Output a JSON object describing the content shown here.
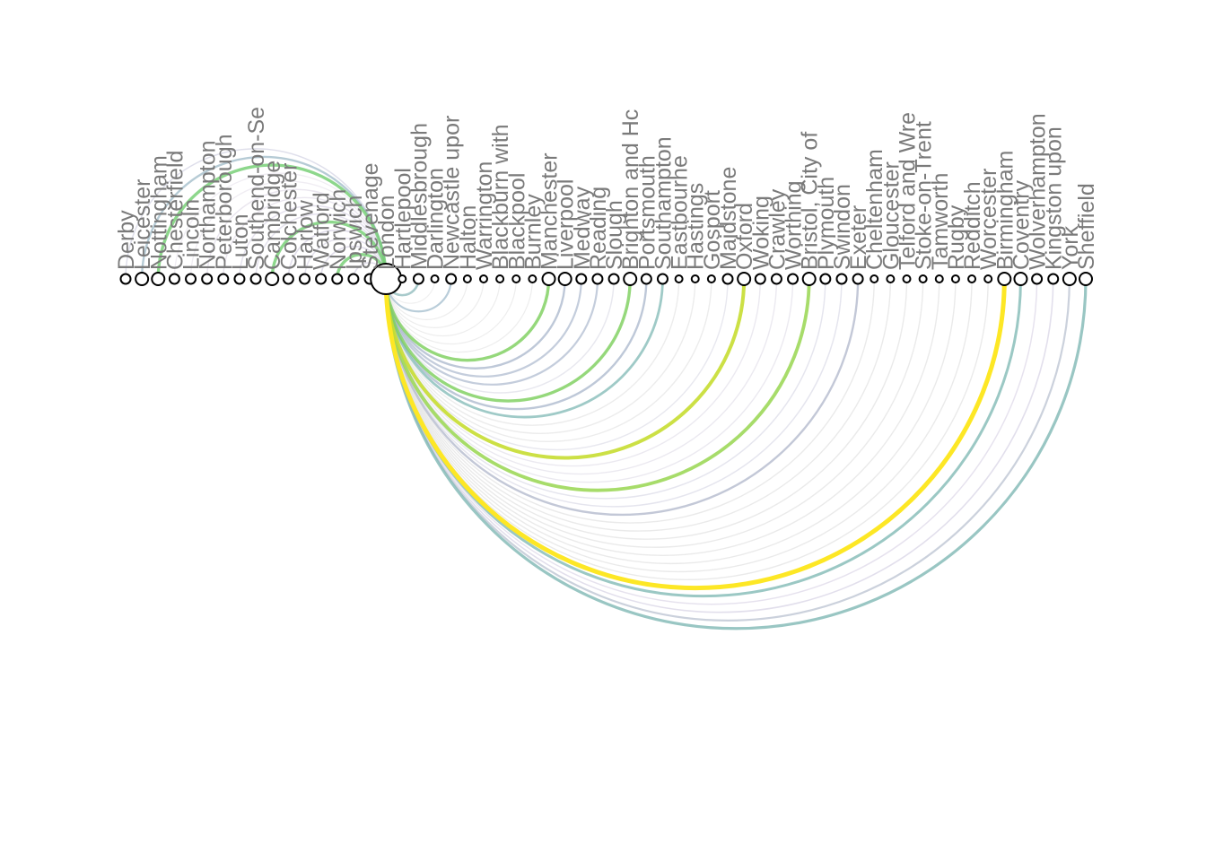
{
  "diagram": {
    "hub": "London",
    "nodes": [
      {
        "label": "Derby",
        "weight": 1
      },
      {
        "label": "Leicester",
        "weight": 2
      },
      {
        "label": "Nottingham",
        "weight": 2
      },
      {
        "label": "Chesterfield",
        "weight": 1
      },
      {
        "label": "Lincoln",
        "weight": 1
      },
      {
        "label": "Northampton",
        "weight": 1
      },
      {
        "label": "Peterborough",
        "weight": 1
      },
      {
        "label": "Luton",
        "weight": 1
      },
      {
        "label": "Southend-on-Se",
        "weight": 1
      },
      {
        "label": "Cambridge",
        "weight": 2
      },
      {
        "label": "Colchester",
        "weight": 1
      },
      {
        "label": "Harlow",
        "weight": 1
      },
      {
        "label": "Watford",
        "weight": 1
      },
      {
        "label": "Norwich",
        "weight": 1
      },
      {
        "label": "Ipswich",
        "weight": 1
      },
      {
        "label": "Stevenage",
        "weight": 1
      },
      {
        "label": "London",
        "weight": 8
      },
      {
        "label": "Hartlepool",
        "weight": 0
      },
      {
        "label": "Middlesbrough",
        "weight": 1
      },
      {
        "label": "Darlington",
        "weight": 0
      },
      {
        "label": "Newcastle upor",
        "weight": 1
      },
      {
        "label": "Halton",
        "weight": 0
      },
      {
        "label": "Warrington",
        "weight": 0
      },
      {
        "label": "Blackburn with",
        "weight": 0
      },
      {
        "label": "Blackpool",
        "weight": 0
      },
      {
        "label": "Burnley",
        "weight": 0
      },
      {
        "label": "Manchester",
        "weight": 2
      },
      {
        "label": "Liverpool",
        "weight": 2
      },
      {
        "label": "Medway",
        "weight": 1
      },
      {
        "label": "Reading",
        "weight": 1
      },
      {
        "label": "Slough",
        "weight": 1
      },
      {
        "label": "Brighton and Hc",
        "weight": 2
      },
      {
        "label": "Portsmouth",
        "weight": 1
      },
      {
        "label": "Southampton",
        "weight": 1
      },
      {
        "label": "Eastbourne",
        "weight": 0
      },
      {
        "label": "Hastings",
        "weight": 0
      },
      {
        "label": "Gosport",
        "weight": 0
      },
      {
        "label": "Maidstone",
        "weight": 1
      },
      {
        "label": "Oxford",
        "weight": 2
      },
      {
        "label": "Woking",
        "weight": 1
      },
      {
        "label": "Crawley",
        "weight": 1
      },
      {
        "label": "Worthing",
        "weight": 1
      },
      {
        "label": "Bristol, City of",
        "weight": 2
      },
      {
        "label": "Plymouth",
        "weight": 1
      },
      {
        "label": "Swindon",
        "weight": 1
      },
      {
        "label": "Exeter",
        "weight": 1
      },
      {
        "label": "Cheltenham",
        "weight": 0
      },
      {
        "label": "Gloucester",
        "weight": 0
      },
      {
        "label": "Telford and Wre",
        "weight": 0
      },
      {
        "label": "Stoke-on-Trent",
        "weight": 0
      },
      {
        "label": "Tamworth",
        "weight": 0
      },
      {
        "label": "Rugby",
        "weight": 0
      },
      {
        "label": "Redditch",
        "weight": 0
      },
      {
        "label": "Worcester",
        "weight": 0
      },
      {
        "label": "Birmingham",
        "weight": 3
      },
      {
        "label": "Coventry",
        "weight": 2
      },
      {
        "label": "Wolverhampton",
        "weight": 1
      },
      {
        "label": "Kingston upon",
        "weight": 1
      },
      {
        "label": "York",
        "weight": 2
      },
      {
        "label": "Sheffield",
        "weight": 2
      }
    ],
    "edges": [
      {
        "target": "Derby",
        "strength": 0.12,
        "color": "#c9c9de"
      },
      {
        "target": "Leicester",
        "strength": 0.35,
        "color": "#98b6c4"
      },
      {
        "target": "Nottingham",
        "strength": 0.6,
        "color": "#74ce73"
      },
      {
        "target": "Chesterfield",
        "strength": 0.08,
        "color": "#e6e0ea"
      },
      {
        "target": "Lincoln",
        "strength": 0.08,
        "color": "#e6e0ea"
      },
      {
        "target": "Northampton",
        "strength": 0.12,
        "color": "#dcd5e4"
      },
      {
        "target": "Peterborough",
        "strength": 0.12,
        "color": "#dcd5e4"
      },
      {
        "target": "Luton",
        "strength": 0.12,
        "color": "#d4cfe2"
      },
      {
        "target": "Southend-on-Se",
        "strength": 0.12,
        "color": "#d4cfe2"
      },
      {
        "target": "Cambridge",
        "strength": 0.6,
        "color": "#74ce73"
      },
      {
        "target": "Colchester",
        "strength": 0.15,
        "color": "#cfc9de"
      },
      {
        "target": "Harlow",
        "strength": 0.12,
        "color": "#d4cfe2"
      },
      {
        "target": "Watford",
        "strength": 0.15,
        "color": "#cfc9de"
      },
      {
        "target": "Norwich",
        "strength": 0.6,
        "color": "#74ce73"
      },
      {
        "target": "Ipswich",
        "strength": 0.15,
        "color": "#cfc9de"
      },
      {
        "target": "Stevenage",
        "strength": 0.12,
        "color": "#d4cfe2"
      },
      {
        "target": "Hartlepool",
        "strength": 0.05,
        "color": "#eeeeee"
      },
      {
        "target": "Middlesbrough",
        "strength": 0.4,
        "color": "#88b6b8"
      },
      {
        "target": "Darlington",
        "strength": 0.05,
        "color": "#e4e4e4"
      },
      {
        "target": "Newcastle upor",
        "strength": 0.3,
        "color": "#9ab7c8"
      },
      {
        "target": "Halton",
        "strength": 0.05,
        "color": "#e0e0e0"
      },
      {
        "target": "Warrington",
        "strength": 0.05,
        "color": "#e0e0e0"
      },
      {
        "target": "Blackburn with",
        "strength": 0.05,
        "color": "#e0e0e0"
      },
      {
        "target": "Blackpool",
        "strength": 0.05,
        "color": "#e0e0e0"
      },
      {
        "target": "Burnley",
        "strength": 0.05,
        "color": "#e0e0e0"
      },
      {
        "target": "Manchester",
        "strength": 0.6,
        "color": "#7ed05e"
      },
      {
        "target": "Liverpool",
        "strength": 0.35,
        "color": "#a3b2c8"
      },
      {
        "target": "Medway",
        "strength": 0.3,
        "color": "#aab6cc"
      },
      {
        "target": "Reading",
        "strength": 0.3,
        "color": "#aab6cc"
      },
      {
        "target": "Slough",
        "strength": 0.12,
        "color": "#d8d8e4"
      },
      {
        "target": "Brighton and Hc",
        "strength": 0.6,
        "color": "#7ed05e"
      },
      {
        "target": "Portsmouth",
        "strength": 0.35,
        "color": "#a3b2c8"
      },
      {
        "target": "Southampton",
        "strength": 0.45,
        "color": "#7fb8b4"
      },
      {
        "target": "Eastbourne",
        "strength": 0.1,
        "color": "#e0e0e0"
      },
      {
        "target": "Hastings",
        "strength": 0.1,
        "color": "#e0e0e0"
      },
      {
        "target": "Gosport",
        "strength": 0.1,
        "color": "#e0e0e0"
      },
      {
        "target": "Maidstone",
        "strength": 0.1,
        "color": "#d8d8e4"
      },
      {
        "target": "Oxford",
        "strength": 0.75,
        "color": "#c6dc2e"
      },
      {
        "target": "Woking",
        "strength": 0.1,
        "color": "#dedae6"
      },
      {
        "target": "Crawley",
        "strength": 0.1,
        "color": "#dedae6"
      },
      {
        "target": "Worthing",
        "strength": 0.1,
        "color": "#dedae6"
      },
      {
        "target": "Bristol, City of",
        "strength": 0.7,
        "color": "#98d652"
      },
      {
        "target": "Plymouth",
        "strength": 0.12,
        "color": "#d4d4e2"
      },
      {
        "target": "Swindon",
        "strength": 0.12,
        "color": "#d4d4e2"
      },
      {
        "target": "Exeter",
        "strength": 0.35,
        "color": "#aab2c6"
      },
      {
        "target": "Cheltenham",
        "strength": 0.1,
        "color": "#dcdcdc"
      },
      {
        "target": "Gloucester",
        "strength": 0.1,
        "color": "#dcdcdc"
      },
      {
        "target": "Telford and Wre",
        "strength": 0.1,
        "color": "#dcdcdc"
      },
      {
        "target": "Stoke-on-Trent",
        "strength": 0.1,
        "color": "#dcdcdc"
      },
      {
        "target": "Tamworth",
        "strength": 0.1,
        "color": "#dcdcdc"
      },
      {
        "target": "Rugby",
        "strength": 0.1,
        "color": "#dcdcdc"
      },
      {
        "target": "Redditch",
        "strength": 0.1,
        "color": "#dcdcdc"
      },
      {
        "target": "Worcester",
        "strength": 0.1,
        "color": "#dcdcdc"
      },
      {
        "target": "Birmingham",
        "strength": 1.0,
        "color": "#fde725"
      },
      {
        "target": "Coventry",
        "strength": 0.5,
        "color": "#7fb8b4"
      },
      {
        "target": "Wolverhampton",
        "strength": 0.12,
        "color": "#d6cfe2"
      },
      {
        "target": "Kingston upon",
        "strength": 0.15,
        "color": "#d0cce0"
      },
      {
        "target": "York",
        "strength": 0.3,
        "color": "#b4bccc"
      },
      {
        "target": "Sheffield",
        "strength": 0.55,
        "color": "#7fb8b4"
      }
    ]
  }
}
